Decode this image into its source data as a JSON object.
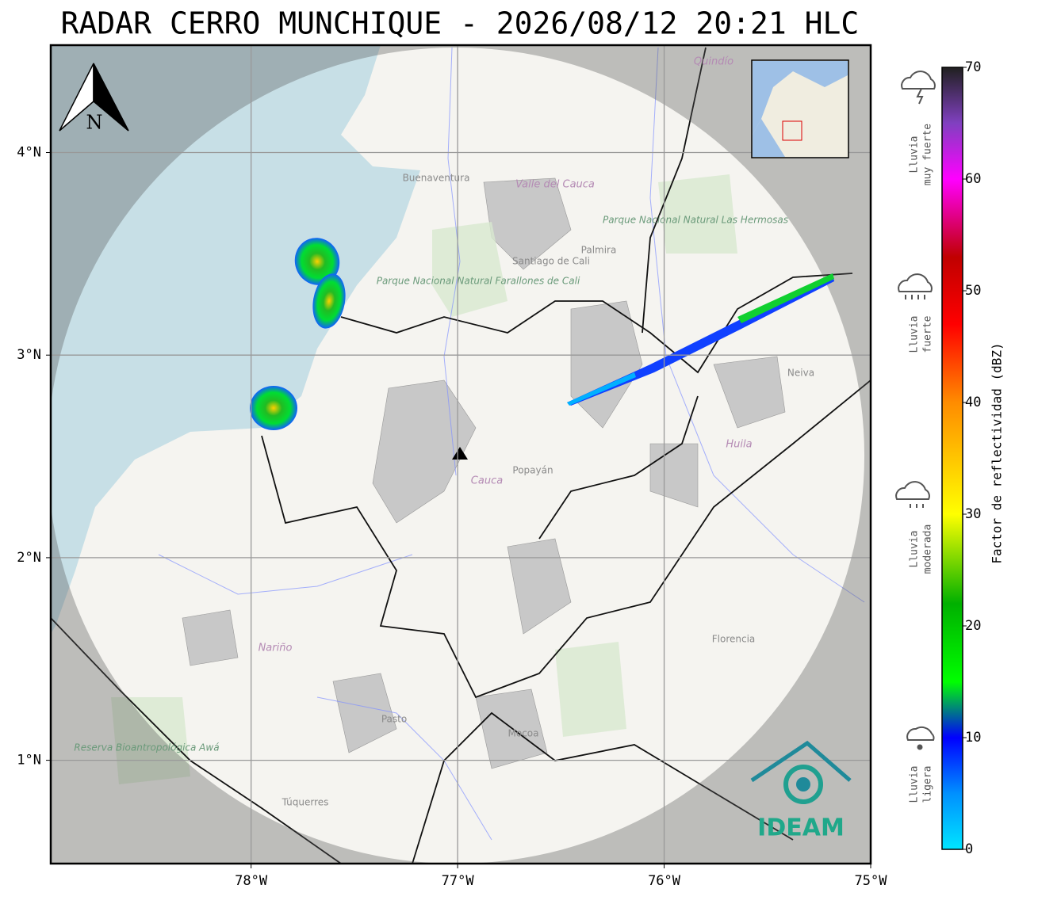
{
  "title": "RADAR CERRO MUNCHIQUE - 2026/08/12 20:21 HLC",
  "map": {
    "xlim": [
      -78.97,
      -75.0
    ],
    "ylim": [
      0.49,
      4.53
    ],
    "xticks": [
      {
        "value": -78,
        "label": "78°W"
      },
      {
        "value": -77,
        "label": "77°W"
      },
      {
        "value": -76,
        "label": "76°W"
      },
      {
        "value": -75,
        "label": "75°W"
      }
    ],
    "yticks": [
      {
        "value": 1,
        "label": "1°N"
      },
      {
        "value": 2,
        "label": "2°N"
      },
      {
        "value": 3,
        "label": "3°N"
      },
      {
        "value": 4,
        "label": "4°N"
      }
    ],
    "grid": true,
    "north_label": "N",
    "logo": "IDEAM",
    "places": [
      "Buenaventura",
      "Valle del Cauca",
      "Santiago de Cali",
      "Palmira",
      "Parque Nacional Natural Farallones de Cali",
      "Parque Nacional Natural Las Hermosas",
      "Popayán",
      "Cauca",
      "Huila",
      "Neiva",
      "Nariño",
      "Pasto",
      "Mocoa",
      "Florencia",
      "Túquerres",
      "Reserva Bioantropológica Awá",
      "Quindío"
    ]
  },
  "colorbar": {
    "label": "Factor de reflectividad (dBZ)",
    "lim": [
      0,
      70
    ],
    "ticks": [
      0,
      10,
      20,
      30,
      40,
      50,
      60,
      70
    ],
    "colorscale": [
      {
        "value": 0,
        "color": "#00e5ff"
      },
      {
        "value": 5,
        "color": "#0090ff"
      },
      {
        "value": 10,
        "color": "#0000ff"
      },
      {
        "value": 15,
        "color": "#00ff00"
      },
      {
        "value": 22,
        "color": "#00b000"
      },
      {
        "value": 30,
        "color": "#ffff00"
      },
      {
        "value": 40,
        "color": "#ff8c00"
      },
      {
        "value": 47,
        "color": "#ff0000"
      },
      {
        "value": 53,
        "color": "#c00000"
      },
      {
        "value": 60,
        "color": "#ff00ff"
      },
      {
        "value": 65,
        "color": "#8040c0"
      },
      {
        "value": 70,
        "color": "#202020"
      }
    ]
  },
  "legend": [
    {
      "lines": [
        "Lluvia",
        "muy fuerte"
      ]
    },
    {
      "lines": [
        "Lluvia",
        "fuerte"
      ]
    },
    {
      "lines": [
        "Lluvia",
        "moderada"
      ]
    },
    {
      "lines": [
        "Lluvia",
        "ligera"
      ]
    }
  ]
}
